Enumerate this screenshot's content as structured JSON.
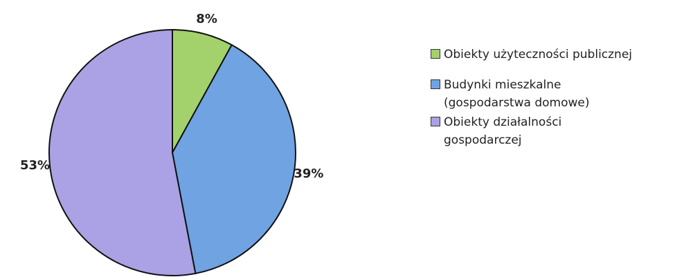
{
  "chart_data": {
    "type": "pie",
    "categories": [
      "Obiekty użyteczności publicznej",
      "Budynki mieszkalne (gospodarstwa domowe)",
      "Obiekty działalności gospodarczej"
    ],
    "values": [
      8,
      39,
      53
    ],
    "value_labels": [
      "8%",
      "39%",
      "53%"
    ],
    "colors": [
      "#a3d16b",
      "#6fa3e2",
      "#aaa2e4"
    ],
    "legend": "right"
  }
}
